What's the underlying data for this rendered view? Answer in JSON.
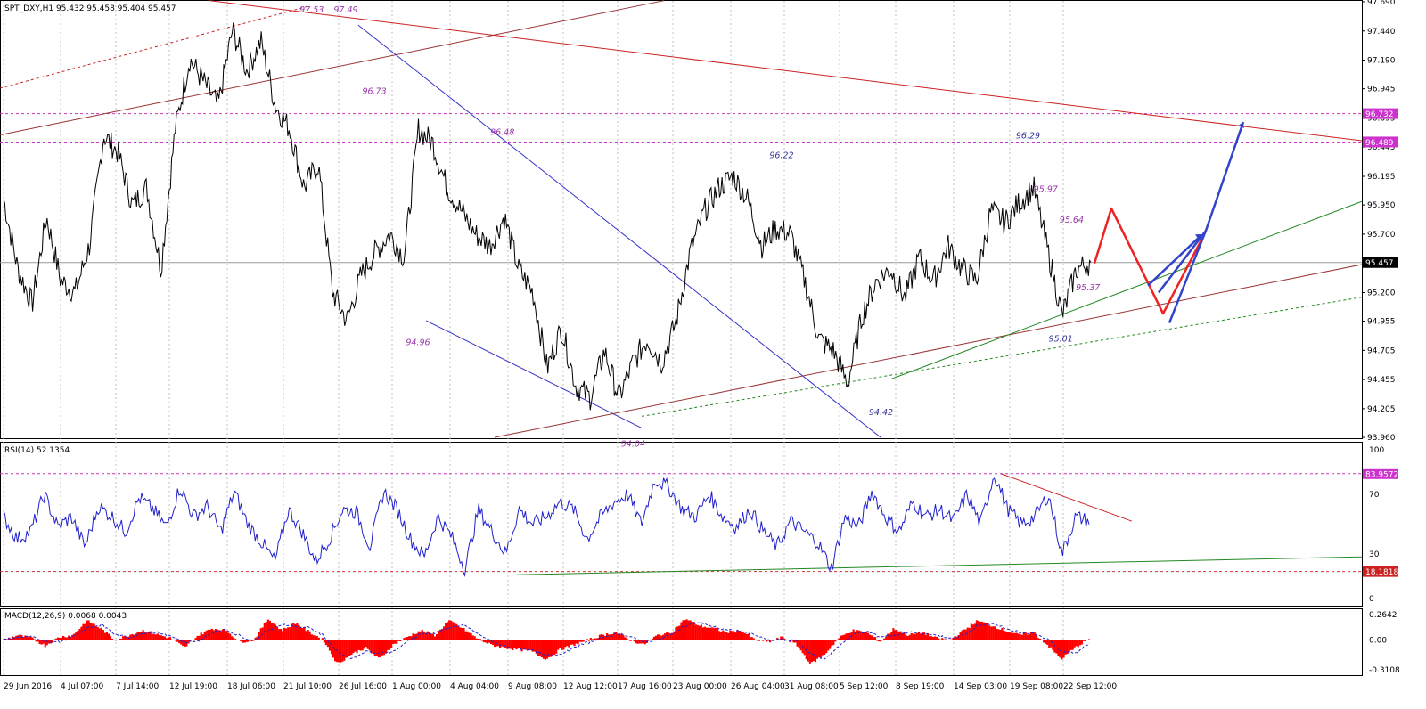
{
  "chart_data": [
    {
      "panel": "main",
      "type": "line",
      "title": "SPT_DXY,H1  95.432 95.458 95.404 95.457",
      "ylim": [
        93.96,
        97.69
      ],
      "y_ticks": [
        "97.690",
        "97.440",
        "97.190",
        "96.945",
        "96.695",
        "96.445",
        "96.195",
        "95.950",
        "95.700",
        "95.450",
        "95.200",
        "94.955",
        "94.705",
        "94.455",
        "94.205",
        "93.960"
      ],
      "series": [
        {
          "values": [
            96.0,
            95.4,
            95.1,
            95.85,
            95.3,
            95.2,
            95.6,
            96.55,
            96.4,
            95.95,
            96.1,
            95.4,
            96.6,
            97.2,
            97.0,
            96.8,
            97.45,
            97.1,
            97.35,
            96.8,
            96.6,
            96.1,
            96.3,
            95.2,
            94.96,
            95.35,
            95.55,
            95.7,
            95.5,
            96.6,
            96.48,
            96.1,
            95.9,
            95.7,
            95.6,
            95.85,
            95.4,
            95.2,
            94.55,
            94.9,
            94.4,
            94.3,
            94.7,
            94.3,
            94.6,
            94.8,
            94.6,
            94.95,
            95.55,
            95.9,
            96.1,
            96.2,
            96.0,
            95.6,
            95.75,
            95.7,
            95.3,
            94.8,
            94.7,
            94.42,
            95.0,
            95.3,
            95.4,
            95.15,
            95.5,
            95.3,
            95.6,
            95.4,
            95.3,
            95.9,
            95.8,
            95.97,
            96.1,
            95.55,
            95.0,
            95.4,
            95.46
          ]
        }
      ],
      "last_price_label": "95.457",
      "hlines": [
        {
          "value": 96.732,
          "label": "96.732",
          "color": "#cc33cc"
        },
        {
          "value": 96.489,
          "label": "96.489",
          "color": "#cc33cc"
        }
      ],
      "annotations": [
        {
          "text": "97.53",
          "x": 22.0,
          "y": 97.6,
          "color": "#9933aa"
        },
        {
          "text": "97.49",
          "x": 24.5,
          "y": 97.6,
          "color": "#9933aa"
        },
        {
          "text": "96.73",
          "x": 26.6,
          "y": 96.9,
          "color": "#9933aa"
        },
        {
          "text": "96.48",
          "x": 36.0,
          "y": 96.55,
          "color": "#9933aa"
        },
        {
          "text": "94.96",
          "x": 29.8,
          "y": 94.75,
          "color": "#9933aa"
        },
        {
          "text": "94.04",
          "x": 45.6,
          "y": 93.88,
          "color": "#9933aa"
        },
        {
          "text": "96.22",
          "x": 56.5,
          "y": 96.35,
          "color": "#333399"
        },
        {
          "text": "96.29",
          "x": 74.6,
          "y": 96.52,
          "color": "#333399"
        },
        {
          "text": "95.97",
          "x": 75.9,
          "y": 96.06,
          "color": "#9933aa"
        },
        {
          "text": "95.64",
          "x": 77.8,
          "y": 95.8,
          "color": "#9933aa"
        },
        {
          "text": "95.37",
          "x": 79.0,
          "y": 95.22,
          "color": "#9933aa"
        },
        {
          "text": "95.01",
          "x": 77.0,
          "y": 94.78,
          "color": "#333399"
        },
        {
          "text": "94.42",
          "x": 63.8,
          "y": 94.15,
          "color": "#333399"
        }
      ]
    },
    {
      "panel": "rsi",
      "type": "line",
      "title": "RSI(14) 52.1354",
      "ylim": [
        0,
        100
      ],
      "y_ticks": [
        "100",
        "70",
        "30",
        "0"
      ],
      "series": [
        {
          "values": [
            55,
            40,
            45,
            70,
            48,
            55,
            35,
            62,
            55,
            45,
            68,
            60,
            48,
            75,
            55,
            62,
            45,
            72,
            50,
            38,
            25,
            60,
            45,
            25,
            40,
            60,
            58,
            35,
            72,
            60,
            40,
            28,
            55,
            42,
            20,
            60,
            45,
            30,
            60,
            50,
            55,
            65,
            60,
            40,
            55,
            65,
            70,
            50,
            80,
            75,
            60,
            55,
            70,
            55,
            48,
            60,
            45,
            35,
            52,
            45,
            38,
            20,
            55,
            48,
            72,
            55,
            45,
            65,
            55,
            60,
            52,
            70,
            50,
            84,
            60,
            50,
            55,
            70,
            30,
            55,
            52
          ]
        }
      ],
      "hlines": [
        {
          "value": 83.9572,
          "label": "83.9572",
          "color": "#cc33cc"
        },
        {
          "value": 18.1818,
          "label": "18.1818",
          "color": "#cc3333"
        }
      ]
    },
    {
      "panel": "macd",
      "type": "area",
      "title": "MACD(12,26,9) 0.0068 0.0043",
      "ylim": [
        -0.3108,
        0.2642
      ],
      "y_ticks": [
        "0.2642",
        "0.00",
        "-0.3108"
      ],
      "series": [
        {
          "values": [
            0.0,
            0.05,
            0.02,
            -0.06,
            0.03,
            0.05,
            0.2,
            0.12,
            0.0,
            0.05,
            0.1,
            0.06,
            0.02,
            -0.08,
            0.05,
            0.12,
            0.1,
            -0.02,
            0.0,
            0.22,
            0.1,
            0.18,
            0.08,
            0.0,
            -0.25,
            -0.15,
            -0.08,
            -0.2,
            -0.05,
            0.03,
            0.1,
            0.05,
            0.2,
            0.12,
            0.02,
            -0.05,
            -0.08,
            -0.1,
            -0.12,
            -0.2,
            -0.1,
            -0.05,
            0.0,
            0.05,
            0.08,
            0.0,
            -0.05,
            0.05,
            0.08,
            0.22,
            0.15,
            0.12,
            0.08,
            0.1,
            0.0,
            -0.02,
            0.03,
            -0.05,
            -0.25,
            -0.15,
            0.02,
            0.1,
            0.08,
            -0.02,
            0.12,
            0.05,
            0.08,
            0.02,
            0.0,
            0.1,
            0.2,
            0.15,
            0.1,
            0.05,
            0.08,
            -0.05,
            -0.2,
            -0.08,
            0.01
          ]
        }
      ]
    }
  ],
  "x_tick_labels": [
    "29 Jun 2016",
    "4 Jul 07:00",
    "7 Jul 14:00",
    "12 Jul 19:00",
    "18 Jul 06:00",
    "21 Jul 10:00",
    "26 Jul 16:00",
    "1 Aug 00:00",
    "4 Aug 04:00",
    "9 Aug 08:00",
    "12 Aug 12:00",
    "17 Aug 16:00",
    "23 Aug 00:00",
    "26 Aug 04:00",
    "31 Aug 08:00",
    "5 Sep 12:00",
    "8 Sep 19:00",
    "14 Sep 03:00",
    "19 Sep 08:00",
    "22 Sep 12:00"
  ],
  "colors": {
    "price": "#000000",
    "rsi": "#2020cc",
    "macd_hist": "#ff0000",
    "macd_signal": "#2222cc",
    "grid": "#c0c0c0",
    "channel_blue": "#3333cc",
    "trend_red": "#cc2222",
    "trend_darkred": "#993333",
    "trend_green": "#228822",
    "forecast_red": "#ee2222",
    "forecast_blue": "#3344cc",
    "axis_box_magenta": "#cc33cc",
    "axis_box_red": "#cc2222",
    "axis_box_dark": "#000000"
  }
}
